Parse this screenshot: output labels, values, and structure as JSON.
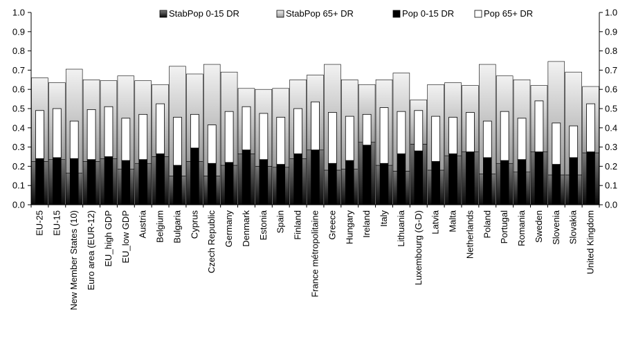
{
  "chart_data": {
    "type": "bar",
    "title": "",
    "xlabel": "",
    "ylabel": "",
    "ylim": [
      0,
      1.0
    ],
    "yticks": [
      "0.0",
      "0.1",
      "0.2",
      "0.3",
      "0.4",
      "0.5",
      "0.6",
      "0.7",
      "0.8",
      "0.9",
      "1.0"
    ],
    "secondary_axis_right": true,
    "grid": false,
    "legend_position": "top",
    "categories": [
      "EU-25",
      "EU-15",
      "New Member States (10)",
      "Euro area (EUR-12)",
      "EU_high GDP",
      "EU_low GDP",
      "Austria",
      "Belgium",
      "Bulgaria",
      "Cyprus",
      "Czech Republic",
      "Germany",
      "Denmark",
      "Estonia",
      "Spain",
      "Finland",
      "France métropolitaine",
      "Greece",
      "Hungary",
      "Ireland",
      "Italy",
      "Lithuania",
      "Luxembourg (G-D)",
      "Latvia",
      "Malta",
      "Netherlands",
      "Poland",
      "Portugal",
      "Romania",
      "Sweden",
      "Slovenia",
      "Slovakia",
      "United Kingdom"
    ],
    "series": [
      {
        "name": "StabPop 0-15 DR",
        "style": "stacked-base-wide",
        "color": "#3a3a3a",
        "values": [
          0.225,
          0.235,
          0.165,
          0.225,
          0.24,
          0.185,
          0.215,
          0.25,
          0.15,
          0.225,
          0.15,
          0.205,
          0.265,
          0.2,
          0.195,
          0.24,
          0.285,
          0.18,
          0.185,
          0.325,
          0.205,
          0.175,
          0.315,
          0.18,
          0.255,
          0.275,
          0.16,
          0.215,
          0.17,
          0.275,
          0.155,
          0.155,
          0.27
        ]
      },
      {
        "name": "StabPop 65+ DR",
        "style": "stacked-top-wide",
        "color": "#cfcfcf",
        "values": [
          0.435,
          0.4,
          0.54,
          0.425,
          0.405,
          0.485,
          0.43,
          0.375,
          0.57,
          0.455,
          0.58,
          0.485,
          0.34,
          0.4,
          0.41,
          0.41,
          0.39,
          0.55,
          0.465,
          0.3,
          0.445,
          0.51,
          0.23,
          0.445,
          0.38,
          0.345,
          0.57,
          0.455,
          0.48,
          0.345,
          0.59,
          0.535,
          0.345
        ]
      },
      {
        "name": "Pop 0-15 DR",
        "style": "stacked-base-narrow",
        "color": "#000000",
        "values": [
          0.24,
          0.245,
          0.24,
          0.235,
          0.25,
          0.23,
          0.235,
          0.265,
          0.205,
          0.295,
          0.215,
          0.22,
          0.285,
          0.235,
          0.21,
          0.265,
          0.285,
          0.215,
          0.23,
          0.31,
          0.215,
          0.265,
          0.28,
          0.225,
          0.265,
          0.275,
          0.245,
          0.23,
          0.235,
          0.275,
          0.21,
          0.245,
          0.275
        ]
      },
      {
        "name": "Pop 65+ DR",
        "style": "stacked-top-narrow",
        "color": "#ffffff",
        "values": [
          0.25,
          0.255,
          0.195,
          0.26,
          0.26,
          0.22,
          0.235,
          0.26,
          0.25,
          0.175,
          0.2,
          0.265,
          0.225,
          0.24,
          0.245,
          0.235,
          0.25,
          0.265,
          0.23,
          0.16,
          0.29,
          0.22,
          0.21,
          0.235,
          0.19,
          0.205,
          0.19,
          0.255,
          0.215,
          0.265,
          0.215,
          0.165,
          0.25
        ]
      }
    ]
  }
}
